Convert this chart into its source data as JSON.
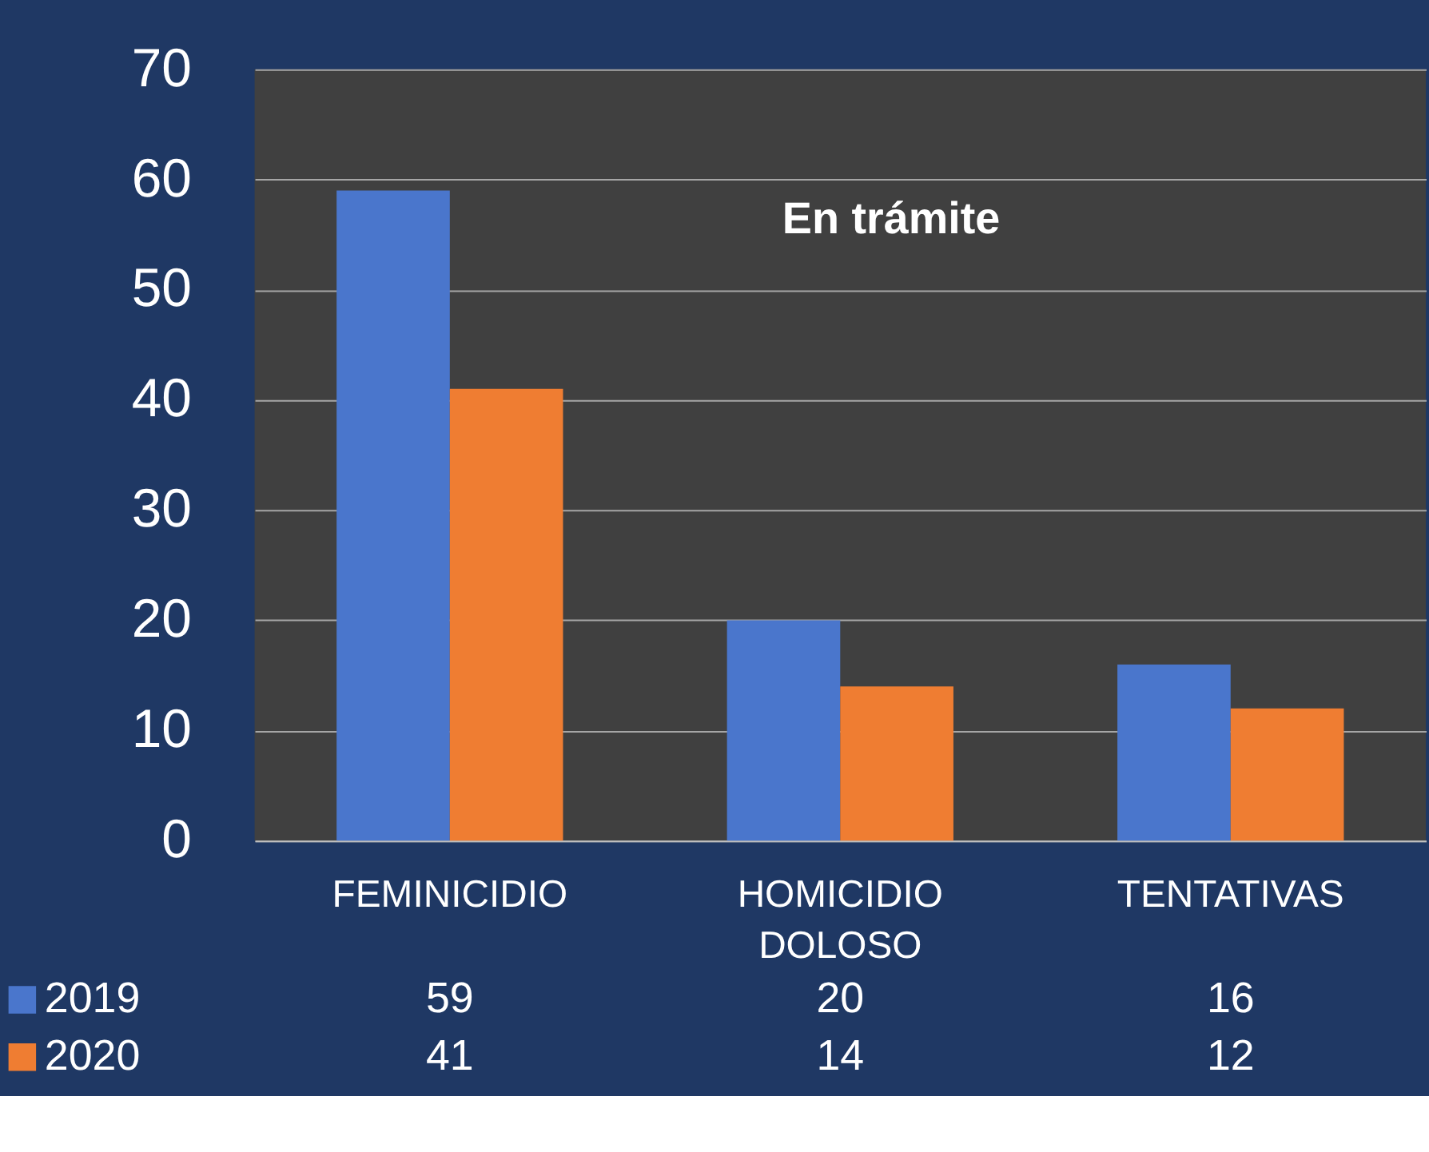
{
  "chart_data": {
    "type": "bar",
    "title": "En trámite",
    "categories": [
      "FEMINICIDIO",
      "HOMICIDIO DOLOSO",
      "TENTATIVAS"
    ],
    "series": [
      {
        "name": "2019",
        "color": "#4a76cc",
        "values": [
          59,
          20,
          16
        ]
      },
      {
        "name": "2020",
        "color": "#ef7d32",
        "values": [
          41,
          14,
          12
        ]
      }
    ],
    "ylim": [
      0,
      70
    ],
    "yticks": [
      0,
      10,
      20,
      30,
      40,
      50,
      60,
      70
    ],
    "grid": "y",
    "data_labels": true,
    "legend": "bottom"
  }
}
